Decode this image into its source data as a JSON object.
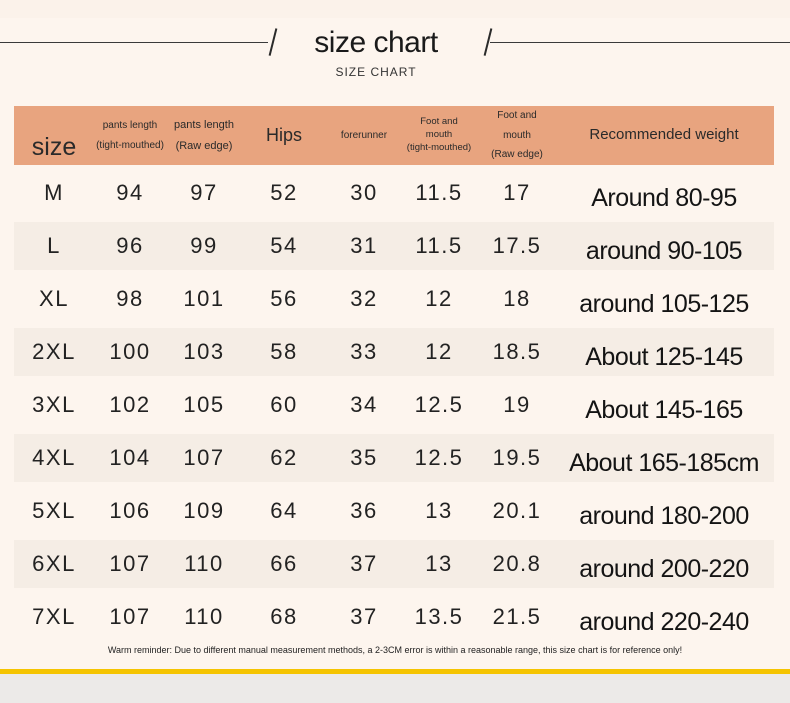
{
  "title": "size chart",
  "subtitle": "SIZE CHART",
  "columns": [
    {
      "lines": [
        "size"
      ]
    },
    {
      "lines": [
        "pants length",
        "(tight-mouthed)"
      ]
    },
    {
      "lines": [
        "pants length",
        "(Raw edge)"
      ]
    },
    {
      "lines": [
        "Hips"
      ]
    },
    {
      "lines": [
        "forerunner"
      ]
    },
    {
      "lines": [
        "Foot and",
        "mouth",
        "(tight-mouthed)"
      ]
    },
    {
      "lines": [
        "Foot and",
        "mouth",
        "(Raw edge)"
      ]
    },
    {
      "lines": [
        "Recommended weight"
      ]
    }
  ],
  "rows": [
    [
      "M",
      "94",
      "97",
      "52",
      "30",
      "11.5",
      "17",
      "Around 80-95"
    ],
    [
      "L",
      "96",
      "99",
      "54",
      "31",
      "11.5",
      "17.5",
      "around 90-105"
    ],
    [
      "XL",
      "98",
      "101",
      "56",
      "32",
      "12",
      "18",
      "around 105-125"
    ],
    [
      "2XL",
      "100",
      "103",
      "58",
      "33",
      "12",
      "18.5",
      "About 125-145"
    ],
    [
      "3XL",
      "102",
      "105",
      "60",
      "34",
      "12.5",
      "19",
      "About 145-165"
    ],
    [
      "4XL",
      "104",
      "107",
      "62",
      "35",
      "12.5",
      "19.5",
      "About 165-185cm"
    ],
    [
      "5XL",
      "106",
      "109",
      "64",
      "36",
      "13",
      "20.1",
      "around 180-200"
    ],
    [
      "6XL",
      "107",
      "110",
      "66",
      "37",
      "13",
      "20.8",
      "around 200-220"
    ],
    [
      "7XL",
      "107",
      "110",
      "68",
      "37",
      "13.5",
      "21.5",
      "around 220-240"
    ]
  ],
  "reminder": "Warm reminder: Due to different manual measurement methods, a 2-3CM error is within a reasonable range, this size chart is for reference only!",
  "colors": {
    "header_bg": "#e8a47f",
    "page_bg": "#fdf5ee",
    "stripe_bg": "#f5ede5",
    "accent_bar": "#f5c400"
  }
}
